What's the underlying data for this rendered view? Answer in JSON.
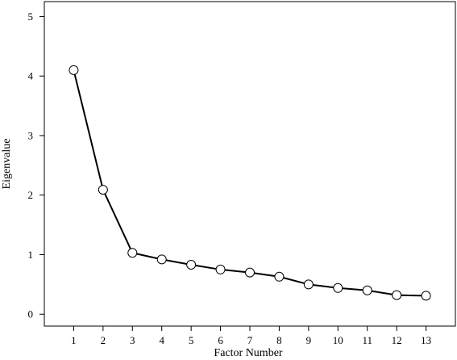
{
  "chart_data": {
    "type": "line",
    "title": "",
    "xlabel": "Factor Number",
    "ylabel": "Eigenvalue",
    "x": [
      1,
      2,
      3,
      4,
      5,
      6,
      7,
      8,
      9,
      10,
      11,
      12,
      13
    ],
    "series": [
      {
        "values": [
          4.1,
          2.09,
          1.03,
          0.92,
          0.83,
          0.75,
          0.7,
          0.63,
          0.5,
          0.44,
          0.4,
          0.32,
          0.31
        ]
      }
    ],
    "xlim": [
      0,
      14
    ],
    "ylim": [
      -0.2,
      5.25
    ],
    "x_ticks": [
      1,
      2,
      3,
      4,
      5,
      6,
      7,
      8,
      9,
      10,
      11,
      12,
      13
    ],
    "y_ticks": [
      0,
      1,
      2,
      3,
      4,
      5
    ],
    "grid": false,
    "legend": "none",
    "marker": "open-circle",
    "line_color": "#000000"
  }
}
